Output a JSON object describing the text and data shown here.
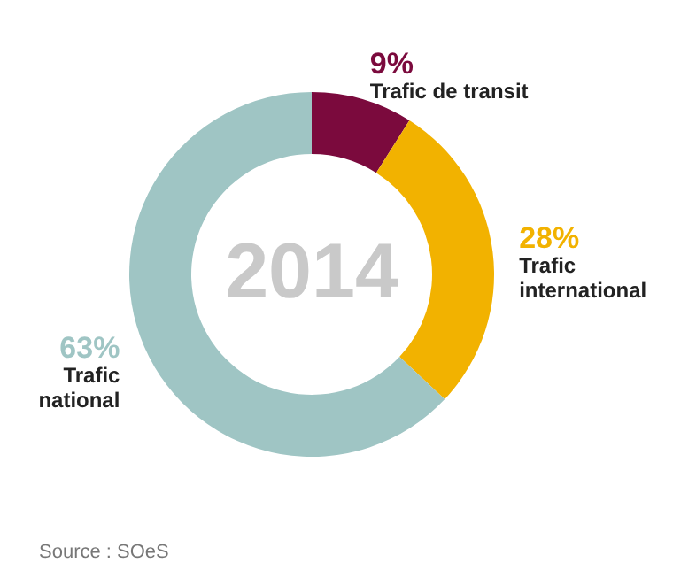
{
  "chart_data": {
    "type": "donut",
    "categories": [
      "Trafic de transit",
      "Trafic international",
      "Trafic national"
    ],
    "values": [
      9,
      28,
      63
    ],
    "colors": [
      "#7b0a3d",
      "#f2b200",
      "#9fc5c4"
    ],
    "value_labels": [
      "9%",
      "28%",
      "63%"
    ],
    "annotations": [
      "2014",
      "Source : SOeS"
    ]
  }
}
